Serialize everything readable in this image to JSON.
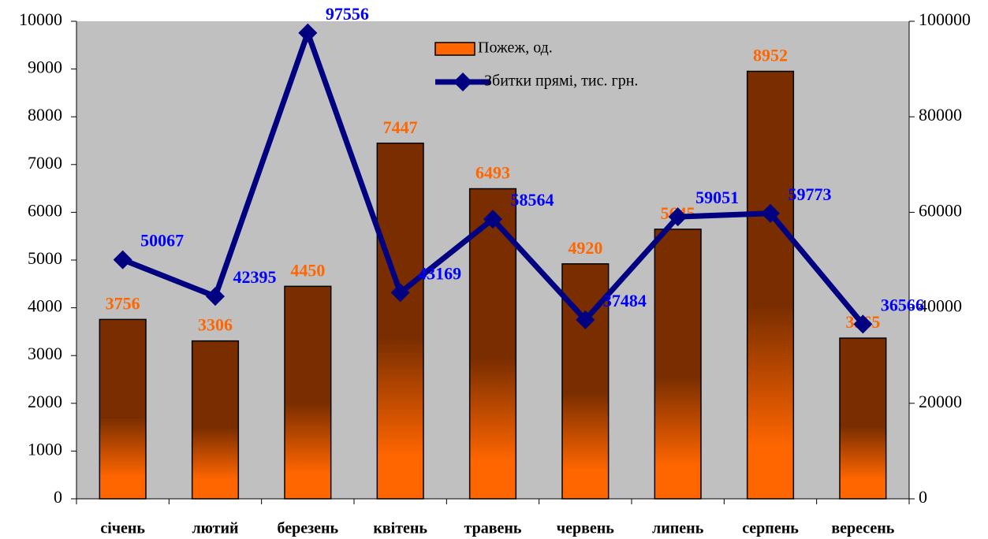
{
  "chart_data": {
    "type": "bar",
    "categories": [
      "січень",
      "лютий",
      "березень",
      "квітень",
      "травень",
      "червень",
      "липень",
      "серпень",
      "вересень"
    ],
    "series": [
      {
        "name": "Пожеж, од.",
        "type": "bar",
        "color": "#ff6600",
        "label_color": "#ff6600",
        "values": [
          3756,
          3306,
          4450,
          7447,
          6493,
          4920,
          5645,
          8952,
          3365
        ]
      },
      {
        "name": "Збитки прямі, тис. грн.",
        "type": "line",
        "axis": "y2",
        "color": "#000080",
        "label_color": "#0000ff",
        "values": [
          50067,
          42395,
          97556,
          43169,
          58564,
          37484,
          59051,
          59773,
          36566
        ]
      }
    ],
    "ylim": [
      0,
      10000
    ],
    "yticks": [
      0,
      1000,
      2000,
      3000,
      4000,
      5000,
      6000,
      7000,
      8000,
      9000,
      10000
    ],
    "y2lim": [
      0,
      100000
    ],
    "y2ticks": [
      0,
      20000,
      40000,
      60000,
      80000,
      100000
    ],
    "plot_background": "#c0c0c0",
    "grid": false
  }
}
